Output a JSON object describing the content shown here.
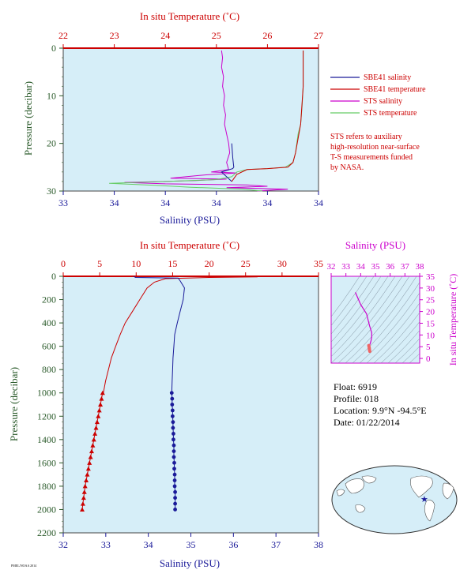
{
  "colors": {
    "red": "#cc0000",
    "blue": "#1a1a99",
    "magenta": "#cc00cc",
    "green": "#66cc66",
    "plot_bg": "#d6eef8",
    "axis_green": "#2a5a2a"
  },
  "chart_data": [
    {
      "type": "line",
      "panel": "top",
      "top_axis_label": "In situ Temperature (˚C)",
      "top_ticks": [
        "22",
        "23",
        "24",
        "25",
        "26",
        "27"
      ],
      "bottom_axis_label": "Salinity (PSU)",
      "bottom_ticks": [
        "33",
        "34",
        "34",
        "34",
        "34",
        "34"
      ],
      "ylabel": "Pressure (decibar)",
      "y_ticks": [
        "0",
        "10",
        "20",
        "30"
      ],
      "ylim": [
        0,
        30
      ],
      "temp_xlim": [
        22,
        27
      ],
      "sal_xlim": [
        33,
        35.5
      ],
      "legend": [
        {
          "label": "SBE41 salinity",
          "color": "#1a1a99"
        },
        {
          "label": "SBE41 temperature",
          "color": "#cc0000"
        },
        {
          "label": "STS salinity",
          "color": "#cc00cc"
        },
        {
          "label": "STS temperature",
          "color": "#66cc66"
        }
      ],
      "note": [
        "STS refers to auxiliary",
        "high-resolution near-surface",
        "T-S measurements funded",
        "by NASA."
      ],
      "series": [
        {
          "name": "STS salinity",
          "color": "#cc00cc",
          "points": [
            [
              34.55,
              0.5
            ],
            [
              34.56,
              2
            ],
            [
              34.55,
              4
            ],
            [
              34.57,
              6
            ],
            [
              34.56,
              8
            ],
            [
              34.58,
              10
            ],
            [
              34.57,
              12
            ],
            [
              34.59,
              14
            ],
            [
              34.58,
              16
            ],
            [
              34.6,
              18
            ],
            [
              34.62,
              20
            ],
            [
              34.63,
              22
            ],
            [
              34.6,
              24
            ],
            [
              34.62,
              25.5
            ],
            [
              34.45,
              26
            ],
            [
              34.7,
              26.2
            ],
            [
              34.4,
              26.6
            ],
            [
              34.2,
              27
            ],
            [
              34.05,
              27.3
            ],
            [
              34.6,
              27.5
            ],
            [
              34.3,
              27.8
            ],
            [
              33.6,
              28.2
            ],
            [
              34.0,
              28.5
            ],
            [
              34.8,
              28.7
            ],
            [
              35.0,
              29
            ],
            [
              34.6,
              29.3
            ],
            [
              35.2,
              29.6
            ],
            [
              34.9,
              30
            ]
          ]
        },
        {
          "name": "STS temperature",
          "color": "#66cc66",
          "points": [
            [
              26.7,
              0.5
            ],
            [
              26.7,
              4
            ],
            [
              26.7,
              8
            ],
            [
              26.68,
              12
            ],
            [
              26.65,
              16
            ],
            [
              26.6,
              18
            ],
            [
              26.55,
              22
            ],
            [
              26.5,
              24
            ],
            [
              26.35,
              25
            ],
            [
              26.0,
              25.3
            ],
            [
              25.6,
              25.5
            ],
            [
              25.4,
              26
            ],
            [
              25.3,
              27
            ],
            [
              25.0,
              27.6
            ],
            [
              24.0,
              28
            ],
            [
              22.9,
              28.4
            ],
            [
              23.8,
              28.8
            ],
            [
              24.5,
              29.2
            ],
            [
              25.5,
              29.6
            ],
            [
              25.9,
              30
            ]
          ]
        },
        {
          "name": "SBE41 salinity",
          "color": "#1a1a99",
          "points": [
            [
              34.65,
              20
            ],
            [
              34.66,
              23
            ],
            [
              34.67,
              25
            ],
            [
              34.66,
              25.3
            ],
            [
              34.55,
              26
            ],
            [
              34.6,
              27
            ],
            [
              34.65,
              28
            ]
          ]
        },
        {
          "name": "SBE41 temperature",
          "color": "#cc0000",
          "points": [
            [
              26.7,
              0.5
            ],
            [
              26.7,
              8
            ],
            [
              26.65,
              16
            ],
            [
              26.55,
              22
            ],
            [
              26.5,
              24
            ],
            [
              26.4,
              25
            ],
            [
              26.0,
              25.3
            ],
            [
              25.6,
              25.5
            ],
            [
              25.4,
              26.5
            ],
            [
              25.3,
              28
            ]
          ]
        }
      ]
    },
    {
      "type": "line",
      "panel": "bottom",
      "top_axis_label": "In situ Temperature (˚C)",
      "top_ticks": [
        "0",
        "5",
        "10",
        "15",
        "20",
        "25",
        "30",
        "35"
      ],
      "bottom_axis_label": "Salinity (PSU)",
      "bottom_ticks": [
        "32",
        "33",
        "34",
        "35",
        "36",
        "37",
        "38"
      ],
      "ylabel": "Pressure (decibar)",
      "y_ticks": [
        "0",
        "200",
        "400",
        "600",
        "800",
        "1000",
        "1200",
        "1400",
        "1600",
        "1800",
        "2000",
        "2200"
      ],
      "ylim": [
        0,
        2200
      ],
      "temp_xlim": [
        0,
        35
      ],
      "sal_xlim": [
        32,
        38
      ],
      "series": [
        {
          "name": "Temperature",
          "color": "#cc0000",
          "points": [
            [
              26.7,
              0
            ],
            [
              26.6,
              5
            ],
            [
              20,
              10
            ],
            [
              14,
              20
            ],
            [
              12.5,
              50
            ],
            [
              11.5,
              100
            ],
            [
              10.5,
              200
            ],
            [
              9.5,
              300
            ],
            [
              8.5,
              400
            ],
            [
              7.8,
              500
            ],
            [
              7.2,
              600
            ],
            [
              6.6,
              700
            ],
            [
              6.2,
              800
            ],
            [
              5.8,
              900
            ],
            [
              5.5,
              1000
            ]
          ],
          "marked_points": [
            [
              5.4,
              1000
            ],
            [
              5.25,
              1050
            ],
            [
              5.1,
              1100
            ],
            [
              4.95,
              1150
            ],
            [
              4.8,
              1200
            ],
            [
              4.65,
              1250
            ],
            [
              4.5,
              1300
            ],
            [
              4.35,
              1350
            ],
            [
              4.2,
              1400
            ],
            [
              4.05,
              1450
            ],
            [
              3.9,
              1500
            ],
            [
              3.75,
              1550
            ],
            [
              3.6,
              1600
            ],
            [
              3.45,
              1650
            ],
            [
              3.3,
              1700
            ],
            [
              3.15,
              1750
            ],
            [
              3.0,
              1800
            ],
            [
              2.9,
              1850
            ],
            [
              2.8,
              1900
            ],
            [
              2.7,
              1950
            ],
            [
              2.6,
              2000
            ]
          ]
        },
        {
          "name": "Salinity",
          "color": "#1a1a99",
          "points": [
            [
              33.65,
              0
            ],
            [
              33.7,
              10
            ],
            [
              34.7,
              15
            ],
            [
              34.75,
              40
            ],
            [
              34.85,
              100
            ],
            [
              34.82,
              200
            ],
            [
              34.75,
              300
            ],
            [
              34.68,
              400
            ],
            [
              34.62,
              500
            ],
            [
              34.6,
              600
            ],
            [
              34.58,
              700
            ],
            [
              34.57,
              800
            ],
            [
              34.56,
              900
            ],
            [
              34.55,
              1000
            ]
          ],
          "marked_points": [
            [
              34.55,
              1000
            ],
            [
              34.56,
              1050
            ],
            [
              34.56,
              1100
            ],
            [
              34.57,
              1150
            ],
            [
              34.57,
              1200
            ],
            [
              34.58,
              1250
            ],
            [
              34.58,
              1300
            ],
            [
              34.59,
              1350
            ],
            [
              34.59,
              1400
            ],
            [
              34.6,
              1450
            ],
            [
              34.6,
              1500
            ],
            [
              34.6,
              1550
            ],
            [
              34.61,
              1600
            ],
            [
              34.61,
              1650
            ],
            [
              34.62,
              1700
            ],
            [
              34.62,
              1750
            ],
            [
              34.62,
              1800
            ],
            [
              34.63,
              1850
            ],
            [
              34.63,
              1900
            ],
            [
              34.63,
              1950
            ],
            [
              34.63,
              2000
            ]
          ]
        }
      ]
    },
    {
      "type": "scatter",
      "panel": "ts-diagram",
      "xlabel": "Salinity (PSU)",
      "x_ticks": [
        "32",
        "33",
        "34",
        "35",
        "36",
        "37",
        "38"
      ],
      "ylabel": "In situ Temperature (˚C)",
      "y_ticks": [
        "0",
        "5",
        "10",
        "15",
        "20",
        "25",
        "30",
        "35"
      ],
      "xlim": [
        32,
        38
      ],
      "ylim": [
        -2,
        35
      ],
      "series": [
        {
          "name": "T-S",
          "color": "#cc00cc",
          "points": [
            [
              33.65,
              28
            ],
            [
              34.0,
              23
            ],
            [
              34.4,
              19
            ],
            [
              34.6,
              14
            ],
            [
              34.75,
              11
            ],
            [
              34.75,
              9
            ],
            [
              34.7,
              7.5
            ],
            [
              34.63,
              6
            ],
            [
              34.6,
              5
            ]
          ]
        },
        {
          "name": "T-S deep",
          "color": "#ee6666",
          "points": [
            [
              34.55,
              5.5
            ],
            [
              34.58,
              4.5
            ],
            [
              34.6,
              3.5
            ],
            [
              34.62,
              3
            ]
          ]
        }
      ]
    }
  ],
  "float_info": {
    "float": "Float:  6919",
    "profile": "Profile:  018",
    "location": "Location:  9.9°N  -94.5°E",
    "date": "Date:  01/22/2014"
  },
  "footer_text": "PMEL/NOAA 2014"
}
